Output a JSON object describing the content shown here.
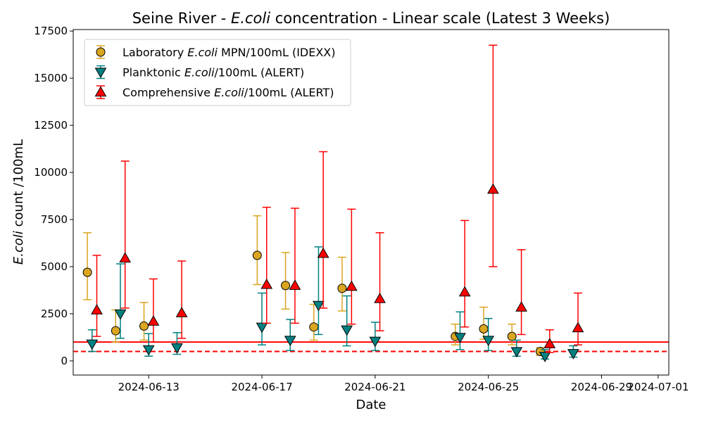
{
  "chart_data": {
    "type": "scatter",
    "title": {
      "pre": "Seine River - ",
      "italic": "E.coli",
      "post": " concentration - Linear scale (Latest 3 Weeks)"
    },
    "xlabel": "Date",
    "ylabel": {
      "italic": "E.coli",
      "post": " count /100mL"
    },
    "xlim": [
      "2024-06-10T08:00",
      "2024-07-01T09:00"
    ],
    "ylim": [
      -750,
      17580
    ],
    "xticks": [
      "2024-06-13",
      "2024-06-17",
      "2024-06-21",
      "2024-06-25",
      "2024-06-29",
      "2024-07-01"
    ],
    "yticks": [
      0,
      2500,
      5000,
      7500,
      10000,
      12500,
      15000,
      17500
    ],
    "grid": false,
    "legend_position": "top-left",
    "hlines": [
      {
        "y": 1000,
        "style": "solid",
        "color": "#ff0000"
      },
      {
        "y": 500,
        "style": "dashed",
        "color": "#ff0000"
      }
    ],
    "series": [
      {
        "name": "Laboratory E.coli MPN/100mL (IDEXX)",
        "legend": {
          "pre": "Laboratory ",
          "italic": "E.coli",
          "post": " MPN/100mL (IDEXX)"
        },
        "marker": "circle",
        "color": "#DAA520",
        "err_color": "#DAA520",
        "points": [
          [
            "2024-06-10T20:00",
            4700,
            3250,
            6800
          ],
          [
            "2024-06-11T20:00",
            1600,
            1000,
            2700
          ],
          [
            "2024-06-12T20:00",
            1850,
            1100,
            3100
          ],
          [
            "2024-06-16T20:00",
            5600,
            4050,
            7700
          ],
          [
            "2024-06-17T20:00",
            4000,
            2750,
            5750
          ],
          [
            "2024-06-18T20:00",
            1800,
            1100,
            3000
          ],
          [
            "2024-06-19T20:00",
            3850,
            2650,
            5500
          ],
          [
            "2024-06-23T20:00",
            1300,
            850,
            1950
          ],
          [
            "2024-06-24T20:00",
            1700,
            1150,
            2850
          ],
          [
            "2024-06-25T20:00",
            1300,
            850,
            1950
          ],
          [
            "2024-06-26T20:00",
            500,
            300,
            700
          ]
        ]
      },
      {
        "name": "Planktonic E.coli/100mL (ALERT)",
        "legend": {
          "pre": "Planktonic ",
          "italic": "E.coli",
          "post": "/100mL (ALERT)"
        },
        "marker": "triangle-down",
        "color": "#008080",
        "err_color": "#008080",
        "points": [
          [
            "2024-06-11T00:00",
            900,
            500,
            1650
          ],
          [
            "2024-06-12T00:00",
            2500,
            1200,
            5150
          ],
          [
            "2024-06-13T00:00",
            600,
            250,
            1450
          ],
          [
            "2024-06-14T00:00",
            700,
            350,
            1500
          ],
          [
            "2024-06-17T00:00",
            1800,
            850,
            3600
          ],
          [
            "2024-06-18T00:00",
            1100,
            550,
            2200
          ],
          [
            "2024-06-19T00:00",
            2950,
            1400,
            6050
          ],
          [
            "2024-06-20T00:00",
            1650,
            800,
            3450
          ],
          [
            "2024-06-21T00:00",
            1050,
            550,
            2050
          ],
          [
            "2024-06-24T00:00",
            1250,
            600,
            2600
          ],
          [
            "2024-06-25T00:00",
            1100,
            550,
            2250
          ],
          [
            "2024-06-26T00:00",
            500,
            250,
            1100
          ],
          [
            "2024-06-27T00:00",
            250,
            100,
            600
          ],
          [
            "2024-06-28T00:00",
            400,
            200,
            800
          ]
        ]
      },
      {
        "name": "Comprehensive E.coli/100mL (ALERT)",
        "legend": {
          "pre": "Comprehensive ",
          "italic": "E.coli",
          "post": "/100mL (ALERT)"
        },
        "marker": "triangle-up",
        "color": "#ff0000",
        "err_color": "#ff0000",
        "points": [
          [
            "2024-06-11T04:00",
            2700,
            1300,
            5600
          ],
          [
            "2024-06-12T04:00",
            5450,
            2800,
            10600
          ],
          [
            "2024-06-13T04:00",
            2100,
            1000,
            4350
          ],
          [
            "2024-06-14T04:00",
            2550,
            1200,
            5300
          ],
          [
            "2024-06-17T04:00",
            4050,
            2000,
            8150
          ],
          [
            "2024-06-18T04:00",
            4000,
            2000,
            8100
          ],
          [
            "2024-06-19T04:00",
            5700,
            2800,
            11100
          ],
          [
            "2024-06-20T04:00",
            3950,
            1950,
            8050
          ],
          [
            "2024-06-21T04:00",
            3300,
            1600,
            6800
          ],
          [
            "2024-06-24T04:00",
            3650,
            1800,
            7450
          ],
          [
            "2024-06-25T04:00",
            9100,
            5000,
            16750
          ],
          [
            "2024-06-26T04:00",
            2850,
            1400,
            5900
          ],
          [
            "2024-06-27T04:00",
            900,
            450,
            1650
          ],
          [
            "2024-06-28T04:00",
            1750,
            850,
            3600
          ]
        ]
      }
    ]
  }
}
